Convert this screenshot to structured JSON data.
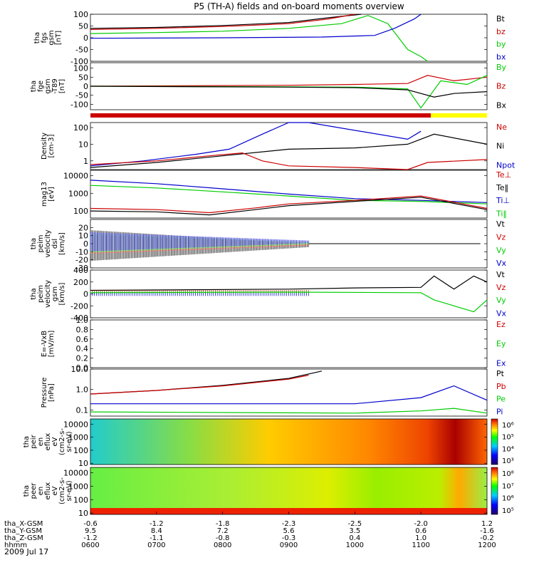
{
  "title": "P5 (TH-A) fields and on-board moments overview",
  "date": "2009 Jul 17",
  "colors": {
    "black": "#000000",
    "red": "#cc0000",
    "green": "#00cc00",
    "blue": "#0000cc",
    "yellow": "#ffff00"
  },
  "panels": [
    {
      "id": "fgs",
      "ylabel": [
        "tha",
        "fgs",
        "gsm",
        "[nT]"
      ],
      "ylim": [
        -100,
        100
      ],
      "ticks": [
        {
          "v": 100,
          "t": "100"
        },
        {
          "v": 50,
          "t": "50"
        },
        {
          "v": 0,
          "t": "0"
        },
        {
          "v": -50,
          "t": "-50"
        },
        {
          "v": -100,
          "t": "-100"
        }
      ],
      "legend": [
        {
          "t": "Bt",
          "c": "black"
        },
        {
          "t": "bz",
          "c": "red"
        },
        {
          "t": "by",
          "c": "green"
        },
        {
          "t": "bx",
          "c": "blue"
        }
      ]
    },
    {
      "id": "fge",
      "ylabel": [
        "tha",
        "fge",
        "gsm",
        "-T89",
        "[nT]"
      ],
      "ylim": [
        -130,
        130
      ],
      "ticks": [
        {
          "v": 100,
          "t": "100"
        },
        {
          "v": 50,
          "t": "50"
        },
        {
          "v": 0,
          "t": "0"
        },
        {
          "v": -50,
          "t": "-50"
        },
        {
          "v": -100,
          "t": "-100"
        }
      ],
      "legend": [
        {
          "t": "By",
          "c": "green"
        },
        {
          "t": "Bz",
          "c": "red"
        },
        {
          "t": "Bx",
          "c": "black"
        }
      ]
    },
    {
      "id": "density",
      "ylabel": [
        "Density",
        "[cm-3]"
      ],
      "scale": "log",
      "ylim": [
        0.3,
        200
      ],
      "ticks": [
        {
          "v": 100,
          "t": "100"
        },
        {
          "v": 10,
          "t": "10"
        },
        {
          "v": 1,
          "t": "1"
        }
      ],
      "legend": [
        {
          "t": "Ne",
          "c": "red"
        },
        {
          "t": "Ni",
          "c": "black"
        },
        {
          "t": "Npot",
          "c": "blue"
        }
      ]
    },
    {
      "id": "temp",
      "ylabel": [
        "mag13",
        "[eV]"
      ],
      "scale": "log",
      "ylim": [
        40,
        20000
      ],
      "ticks": [
        {
          "v": 10000,
          "t": "10000"
        },
        {
          "v": 1000,
          "t": "1000"
        },
        {
          "v": 100,
          "t": "100"
        }
      ],
      "legend": [
        {
          "t": "Te⊥",
          "c": "red"
        },
        {
          "t": "Te‖",
          "c": "black"
        },
        {
          "t": "Ti⊥",
          "c": "blue"
        },
        {
          "t": "Ti‖",
          "c": "green"
        }
      ]
    },
    {
      "id": "vdsl",
      "ylabel": [
        "tha",
        "peim",
        "velocity",
        "dsl",
        "[km/s]"
      ],
      "ylim": [
        -30,
        30
      ],
      "ticks": [
        {
          "v": 20,
          "t": "20"
        },
        {
          "v": 10,
          "t": "10"
        },
        {
          "v": 0,
          "t": "0"
        },
        {
          "v": -10,
          "t": "-10"
        },
        {
          "v": -20,
          "t": "-20"
        },
        {
          "v": -30,
          "t": "-30"
        }
      ],
      "legend": [
        {
          "t": "Vt",
          "c": "black"
        },
        {
          "t": "Vz",
          "c": "red"
        },
        {
          "t": "Vy",
          "c": "green"
        },
        {
          "t": "Vx",
          "c": "blue"
        }
      ]
    },
    {
      "id": "vgsm",
      "ylabel": [
        "tha",
        "peim",
        "velocity",
        "gsm",
        "[km/s]"
      ],
      "ylim": [
        -400,
        400
      ],
      "ticks": [
        {
          "v": 400,
          "t": "400"
        },
        {
          "v": 200,
          "t": "200"
        },
        {
          "v": 0,
          "t": "0"
        },
        {
          "v": -200,
          "t": "-200"
        },
        {
          "v": -400,
          "t": "-400"
        }
      ],
      "legend": [
        {
          "t": "Vt",
          "c": "black"
        },
        {
          "t": "Vz",
          "c": "red"
        },
        {
          "t": "Vy",
          "c": "green"
        },
        {
          "t": "Vx",
          "c": "blue"
        }
      ]
    },
    {
      "id": "efield",
      "ylabel": [
        "E=-VxB",
        "[mV/m]"
      ],
      "ylim": [
        0,
        1
      ],
      "ticks": [
        {
          "v": 1,
          "t": "1.0"
        },
        {
          "v": 0.8,
          "t": "0.8"
        },
        {
          "v": 0.6,
          "t": "0.6"
        },
        {
          "v": 0.4,
          "t": "0.4"
        },
        {
          "v": 0.2,
          "t": "0.2"
        },
        {
          "v": 0,
          "t": "0.0"
        }
      ],
      "legend": [
        {
          "t": "Ez",
          "c": "red"
        },
        {
          "t": "Ey",
          "c": "green"
        },
        {
          "t": "Ex",
          "c": "blue"
        }
      ]
    },
    {
      "id": "pressure",
      "ylabel": [
        "Pressure",
        "[nPa]"
      ],
      "scale": "log",
      "ylim": [
        0.05,
        10
      ],
      "ticks": [
        {
          "v": 10,
          "t": "10.0"
        },
        {
          "v": 1,
          "t": "1.0"
        },
        {
          "v": 0.1,
          "t": "0.1"
        }
      ],
      "legend": [
        {
          "t": "Pt",
          "c": "black"
        },
        {
          "t": "Pb",
          "c": "red"
        },
        {
          "t": "Pe",
          "c": "green"
        },
        {
          "t": "Pi",
          "c": "blue"
        }
      ]
    },
    {
      "id": "ionspec",
      "ylabel": [
        "tha",
        "peir",
        "en",
        "eflux",
        "eV",
        "(cm2-s-",
        "sr-eV)"
      ],
      "scale": "log",
      "ylim": [
        8,
        25000
      ],
      "ticks": [
        {
          "v": 10000,
          "t": "10000"
        },
        {
          "v": 1000,
          "t": "1000"
        },
        {
          "v": 100,
          "t": "100"
        },
        {
          "v": 10,
          "t": "10"
        }
      ],
      "colorbar": [
        {
          "t": "10⁶"
        },
        {
          "t": "10⁵"
        },
        {
          "t": "10⁴"
        },
        {
          "t": "10³"
        }
      ]
    },
    {
      "id": "elecspec",
      "ylabel": [
        "tha",
        "peer",
        "en",
        "eflux",
        "eV",
        "(cm2-s-",
        "sr-eV)"
      ],
      "scale": "log",
      "ylim": [
        8,
        25000
      ],
      "ticks": [
        {
          "v": 10000,
          "t": "10000"
        },
        {
          "v": 1000,
          "t": "1000"
        },
        {
          "v": 100,
          "t": "100"
        },
        {
          "v": 10,
          "t": "10"
        }
      ],
      "colorbar": [
        {
          "t": "10⁸"
        },
        {
          "t": "10⁷"
        },
        {
          "t": "10⁶"
        },
        {
          "t": "10⁵"
        }
      ]
    }
  ],
  "chart_data": {
    "type": "line",
    "title": "P5 (TH-A) fields and on-board moments overview",
    "x_range": [
      "0600",
      "1200"
    ],
    "x_rows": [
      {
        "label": "tha_X-GSM",
        "values": [
          "-0.6",
          "-1.2",
          "-1.8",
          "-2.3",
          "-2.5",
          "-2.0",
          "1.2"
        ]
      },
      {
        "label": "tha_Y-GSM",
        "values": [
          "9.5",
          "8.4",
          "7.2",
          "5.6",
          "3.5",
          "0.6",
          "-1.6"
        ]
      },
      {
        "label": "tha_Z-GSM",
        "values": [
          "-1.2",
          "-1.1",
          "-0.8",
          "-0.3",
          "0.4",
          "1.0",
          "-0.2"
        ]
      },
      {
        "label": "hhmm",
        "values": [
          "0600",
          "0700",
          "0800",
          "0900",
          "1000",
          "1100",
          "1200"
        ]
      }
    ],
    "series": {
      "fgs_Bt": [
        [
          6,
          40
        ],
        [
          7,
          44
        ],
        [
          8,
          52
        ],
        [
          9,
          65
        ],
        [
          9.6,
          85
        ],
        [
          10.1,
          110
        ]
      ],
      "fgs_bz": [
        [
          6,
          35
        ],
        [
          7,
          40
        ],
        [
          8,
          48
        ],
        [
          9,
          60
        ],
        [
          9.6,
          80
        ],
        [
          10,
          100
        ]
      ],
      "fgs_by": [
        [
          6,
          18
        ],
        [
          7,
          22
        ],
        [
          8,
          28
        ],
        [
          9,
          40
        ],
        [
          9.8,
          60
        ],
        [
          10.2,
          95
        ],
        [
          10.5,
          60
        ],
        [
          10.8,
          -50
        ],
        [
          11,
          -80
        ],
        [
          11.1,
          -100
        ]
      ],
      "fgs_bx": [
        [
          6,
          -2
        ],
        [
          8,
          0
        ],
        [
          9.5,
          3
        ],
        [
          10.3,
          10
        ],
        [
          10.6,
          40
        ],
        [
          10.9,
          80
        ],
        [
          11,
          110
        ]
      ],
      "fge_Bz": [
        [
          6,
          0
        ],
        [
          9,
          5
        ],
        [
          10,
          10
        ],
        [
          10.8,
          15
        ],
        [
          11.1,
          60
        ],
        [
          11.5,
          30
        ],
        [
          12,
          50
        ]
      ],
      "fge_By": [
        [
          6,
          0
        ],
        [
          9,
          -3
        ],
        [
          10,
          -5
        ],
        [
          10.8,
          -15
        ],
        [
          11,
          -120
        ],
        [
          11.3,
          30
        ],
        [
          11.7,
          10
        ],
        [
          12,
          60
        ]
      ],
      "fge_Bx": [
        [
          6,
          0
        ],
        [
          9,
          -5
        ],
        [
          10,
          -8
        ],
        [
          10.8,
          -20
        ],
        [
          11.2,
          -60
        ],
        [
          11.5,
          -40
        ],
        [
          12,
          -30
        ]
      ],
      "density_Npot": [
        [
          6,
          0.5
        ],
        [
          6.8,
          1
        ],
        [
          7.6,
          2.5
        ],
        [
          8.1,
          5
        ],
        [
          8.6,
          40
        ],
        [
          9,
          200
        ],
        [
          9.3,
          300
        ],
        [
          10.8,
          20
        ],
        [
          11,
          60
        ]
      ],
      "density_Ni": [
        [
          6,
          0.4
        ],
        [
          7,
          0.8
        ],
        [
          8,
          2
        ],
        [
          9,
          5
        ],
        [
          10,
          6
        ],
        [
          10.8,
          10
        ],
        [
          11.2,
          40
        ],
        [
          12,
          10
        ]
      ],
      "density_Ne": [
        [
          6,
          0.6
        ],
        [
          7,
          1
        ],
        [
          7.8,
          2
        ],
        [
          8.3,
          3
        ],
        [
          8.6,
          1
        ],
        [
          9,
          0.5
        ],
        [
          10,
          0.4
        ],
        [
          10.8,
          0.3
        ],
        [
          11.1,
          0.8
        ],
        [
          12,
          1.2
        ]
      ],
      "temp_Tperp_i": [
        [
          6,
          5500
        ],
        [
          7,
          3500
        ],
        [
          8,
          1800
        ],
        [
          9,
          900
        ],
        [
          10,
          500
        ],
        [
          11,
          400
        ],
        [
          12,
          300
        ]
      ],
      "temp_Tpar_i": [
        [
          6,
          2800
        ],
        [
          7,
          2000
        ],
        [
          8,
          1200
        ],
        [
          9,
          700
        ],
        [
          10,
          400
        ],
        [
          11,
          350
        ],
        [
          12,
          250
        ]
      ],
      "temp_Tpar_e": [
        [
          6,
          100
        ],
        [
          7,
          90
        ],
        [
          7.8,
          60
        ],
        [
          8.5,
          120
        ],
        [
          9,
          200
        ],
        [
          10,
          350
        ],
        [
          11,
          600
        ],
        [
          12,
          120
        ]
      ],
      "temp_Tperp_e": [
        [
          6,
          140
        ],
        [
          7,
          120
        ],
        [
          7.8,
          80
        ],
        [
          8.5,
          150
        ],
        [
          9,
          250
        ],
        [
          10,
          400
        ],
        [
          11,
          700
        ],
        [
          12,
          140
        ]
      ],
      "pressure_Pt": [
        [
          6,
          0.6
        ],
        [
          7,
          0.9
        ],
        [
          8,
          1.6
        ],
        [
          9,
          3.5
        ],
        [
          9.5,
          8
        ]
      ],
      "pressure_Pb": [
        [
          6,
          0.6
        ],
        [
          7,
          0.9
        ],
        [
          8,
          1.5
        ],
        [
          9,
          3.2
        ],
        [
          9.3,
          5
        ]
      ],
      "pressure_Pi": [
        [
          6,
          0.2
        ],
        [
          8,
          0.2
        ],
        [
          10,
          0.2
        ],
        [
          11,
          0.4
        ],
        [
          11.5,
          1.5
        ],
        [
          12,
          0.3
        ]
      ],
      "pressure_Pe": [
        [
          6,
          0.08
        ],
        [
          10,
          0.07
        ],
        [
          11,
          0.09
        ],
        [
          11.5,
          0.12
        ],
        [
          12,
          0.07
        ]
      ],
      "vgsm_Vt": [
        [
          6,
          60
        ],
        [
          9,
          80
        ],
        [
          10,
          100
        ],
        [
          11,
          110
        ],
        [
          11.2,
          300
        ],
        [
          11.5,
          80
        ],
        [
          11.8,
          300
        ],
        [
          12,
          200
        ]
      ],
      "vgsm_Vy": [
        [
          6,
          20
        ],
        [
          9,
          30
        ],
        [
          11,
          20
        ],
        [
          11.2,
          -100
        ],
        [
          11.8,
          -300
        ],
        [
          12,
          -100
        ]
      ]
    }
  }
}
